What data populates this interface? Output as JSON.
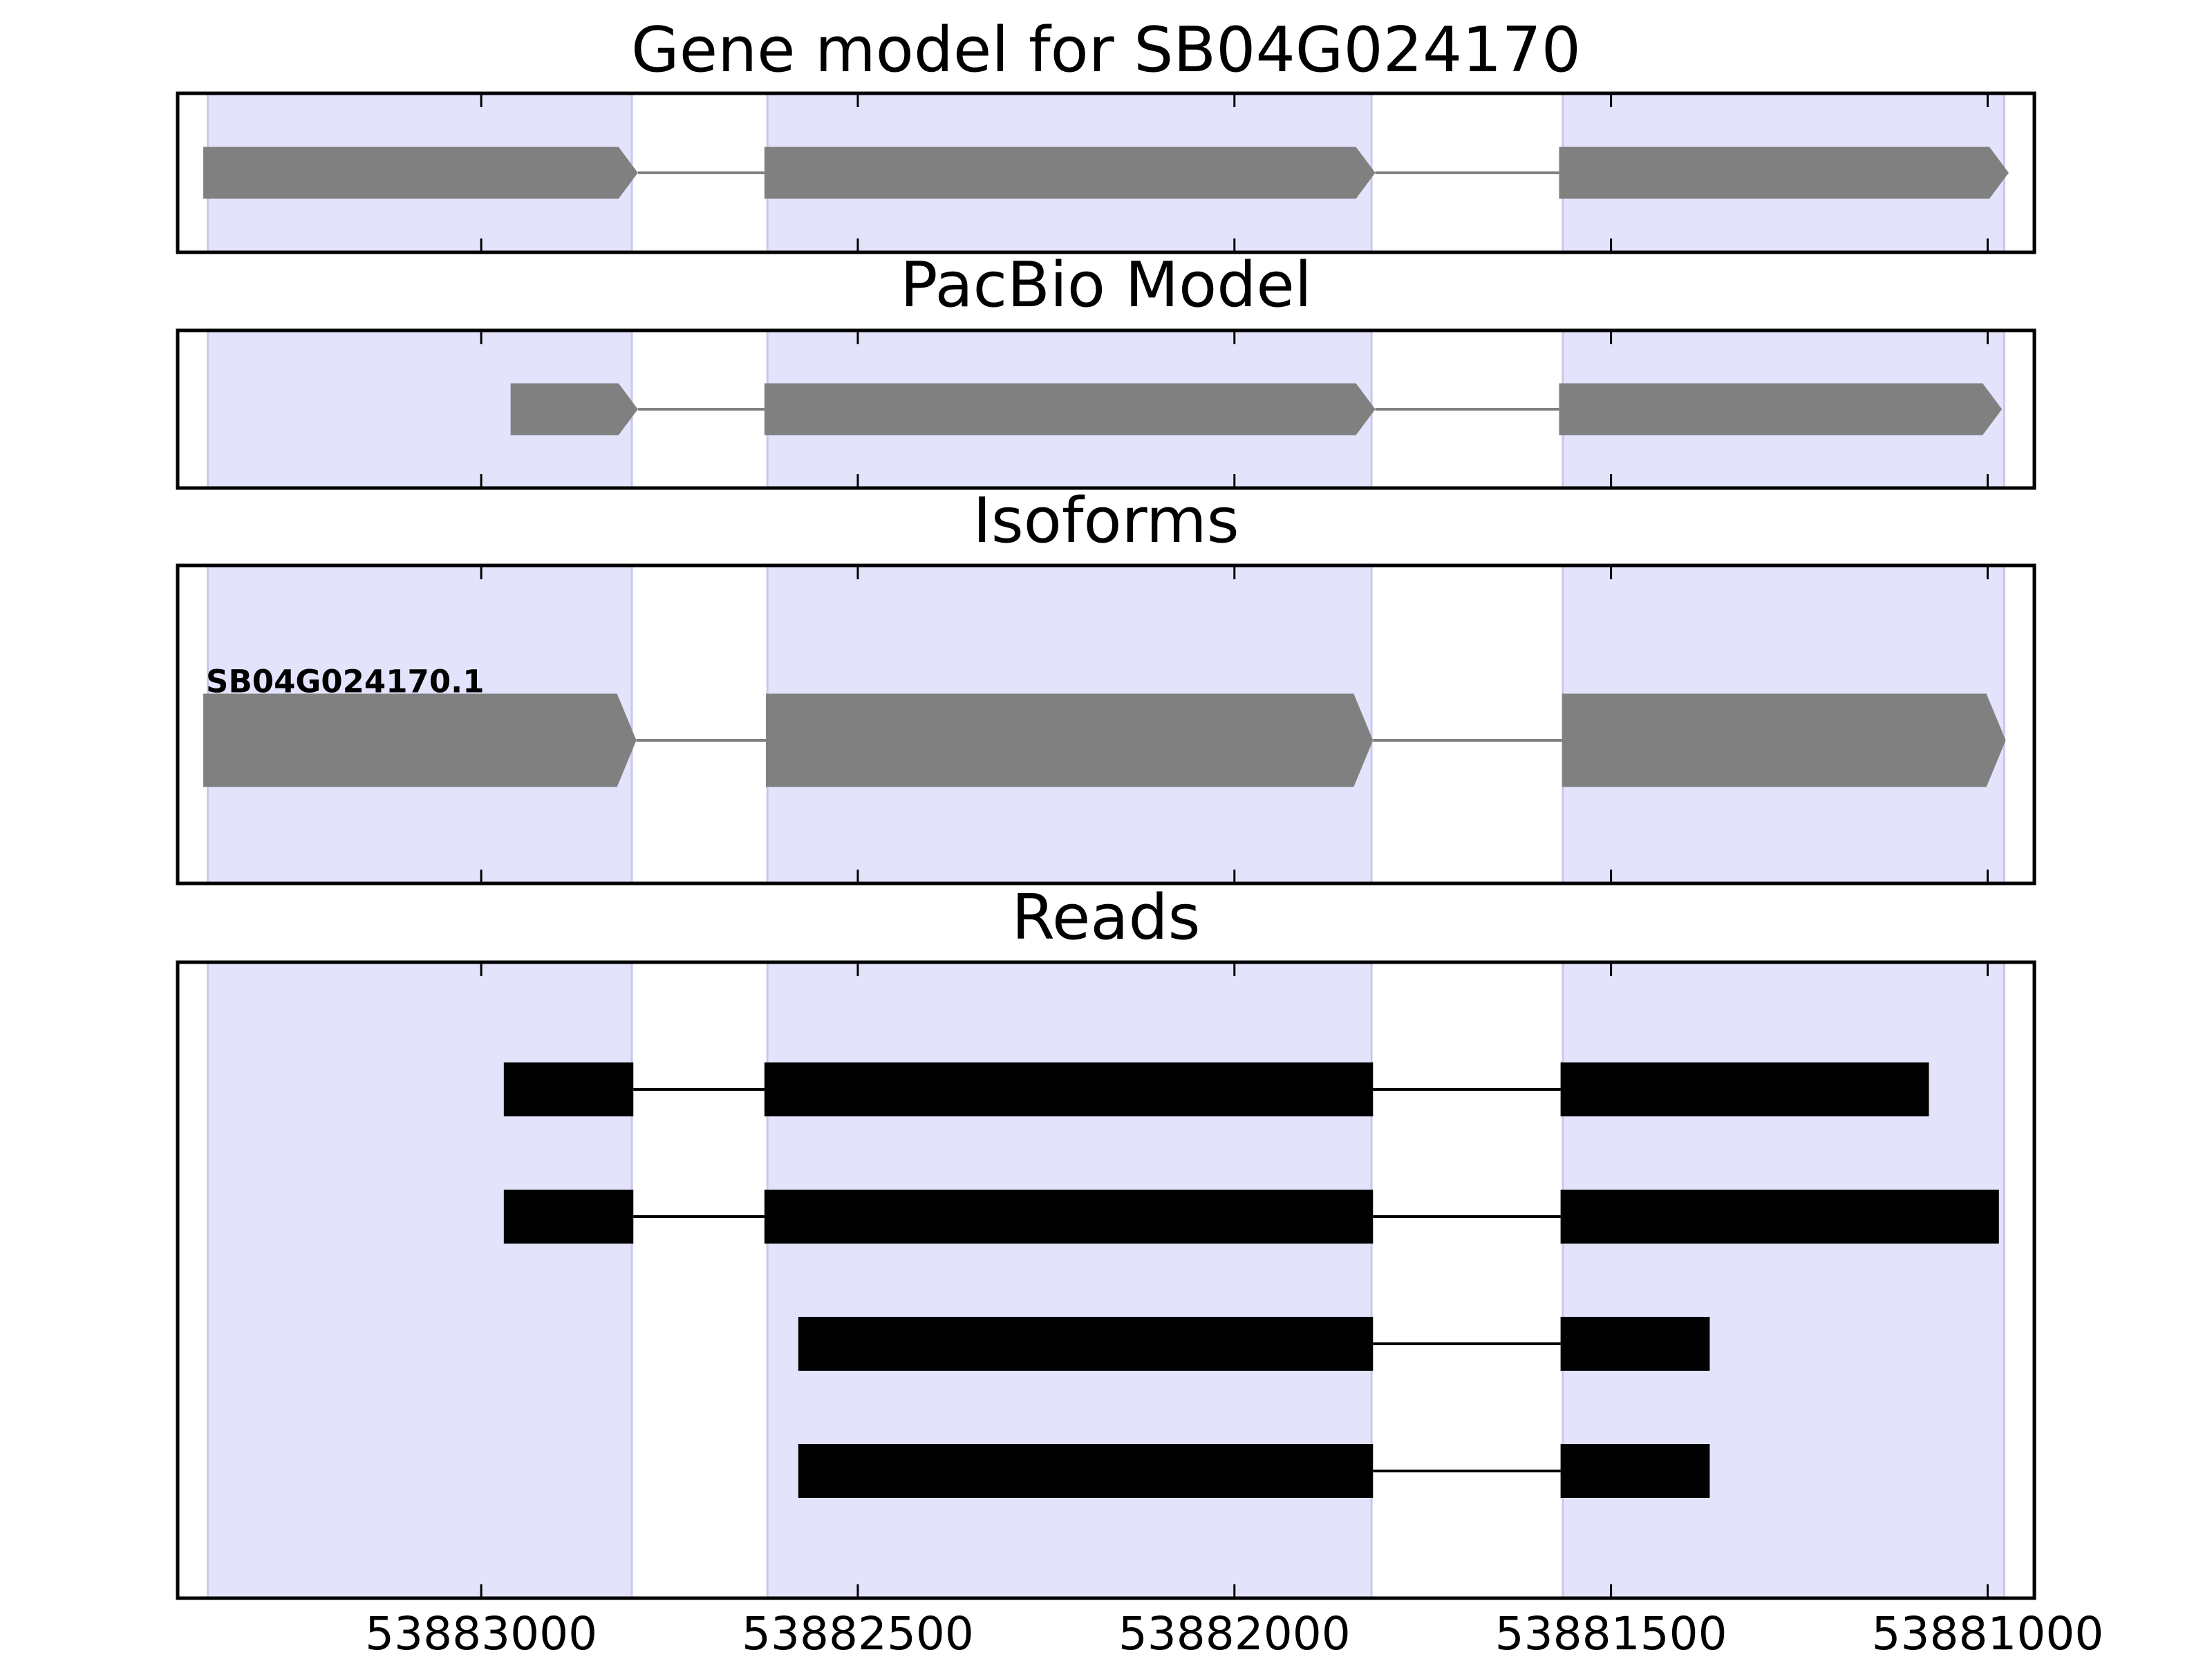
{
  "chart_data": [
    {
      "type": "gene",
      "title": "Gene model for SB04G024170",
      "xlim": [
        53883403,
        53880938
      ],
      "xticks": [
        53883000,
        53882500,
        53882000,
        53881500,
        53881000
      ],
      "highlight_regions": [
        [
          53883363,
          53882800
        ],
        [
          53882620,
          53881818
        ],
        [
          53881564,
          53880978
        ]
      ],
      "highlight_color": "#e3e3fc",
      "color": "#808080",
      "features": [
        {
          "exons": [
            [
              53883369,
              53882792
            ],
            [
              53882624,
              53881813
            ],
            [
              53881569,
              53880972
            ]
          ]
        }
      ]
    },
    {
      "type": "gene",
      "title": "PacBio Model",
      "xlim": [
        53883403,
        53880938
      ],
      "xticks": [
        53883000,
        53882500,
        53882000,
        53881500,
        53881000
      ],
      "highlight_regions": [
        [
          53883363,
          53882800
        ],
        [
          53882620,
          53881818
        ],
        [
          53881564,
          53880978
        ]
      ],
      "highlight_color": "#e3e3fc",
      "color": "#808080",
      "features": [
        {
          "exons": [
            [
              53882961,
              53882792
            ],
            [
              53882624,
              53881813
            ],
            [
              53881569,
              53880981
            ]
          ]
        }
      ]
    },
    {
      "type": "gene",
      "title": "Isoforms",
      "xlim": [
        53883403,
        53880938
      ],
      "xticks": [
        53883000,
        53882500,
        53882000,
        53881500,
        53881000
      ],
      "highlight_regions": [
        [
          53883363,
          53882800
        ],
        [
          53882620,
          53881818
        ],
        [
          53881564,
          53880978
        ]
      ],
      "highlight_color": "#e3e3fc",
      "color": "#808080",
      "features": [
        {
          "name": "SB04G024170.1",
          "exons": [
            [
              53883369,
              53882794
            ],
            [
              53882622,
              53881816
            ],
            [
              53881565,
              53880976
            ]
          ]
        }
      ]
    },
    {
      "type": "reads",
      "title": "Reads",
      "xlim": [
        53883403,
        53880938
      ],
      "xticks": [
        53883000,
        53882500,
        53882000,
        53881500,
        53881000
      ],
      "highlight_regions": [
        [
          53883363,
          53882800
        ],
        [
          53882620,
          53881818
        ],
        [
          53881564,
          53880978
        ]
      ],
      "highlight_color": "#e3e3fc",
      "color": "#000000",
      "features": [
        {
          "exons": [
            [
              53882970,
              53882798
            ],
            [
              53882624,
              53881816
            ],
            [
              53881567,
              53881078
            ]
          ]
        },
        {
          "exons": [
            [
              53882970,
              53882798
            ],
            [
              53882624,
              53881816
            ],
            [
              53881567,
              53880985
            ]
          ]
        },
        {
          "exons": [
            [
              53882579,
              53881816
            ],
            [
              53881567,
              53881369
            ]
          ]
        },
        {
          "exons": [
            [
              53882579,
              53881816
            ],
            [
              53881567,
              53881369
            ]
          ]
        }
      ]
    }
  ]
}
